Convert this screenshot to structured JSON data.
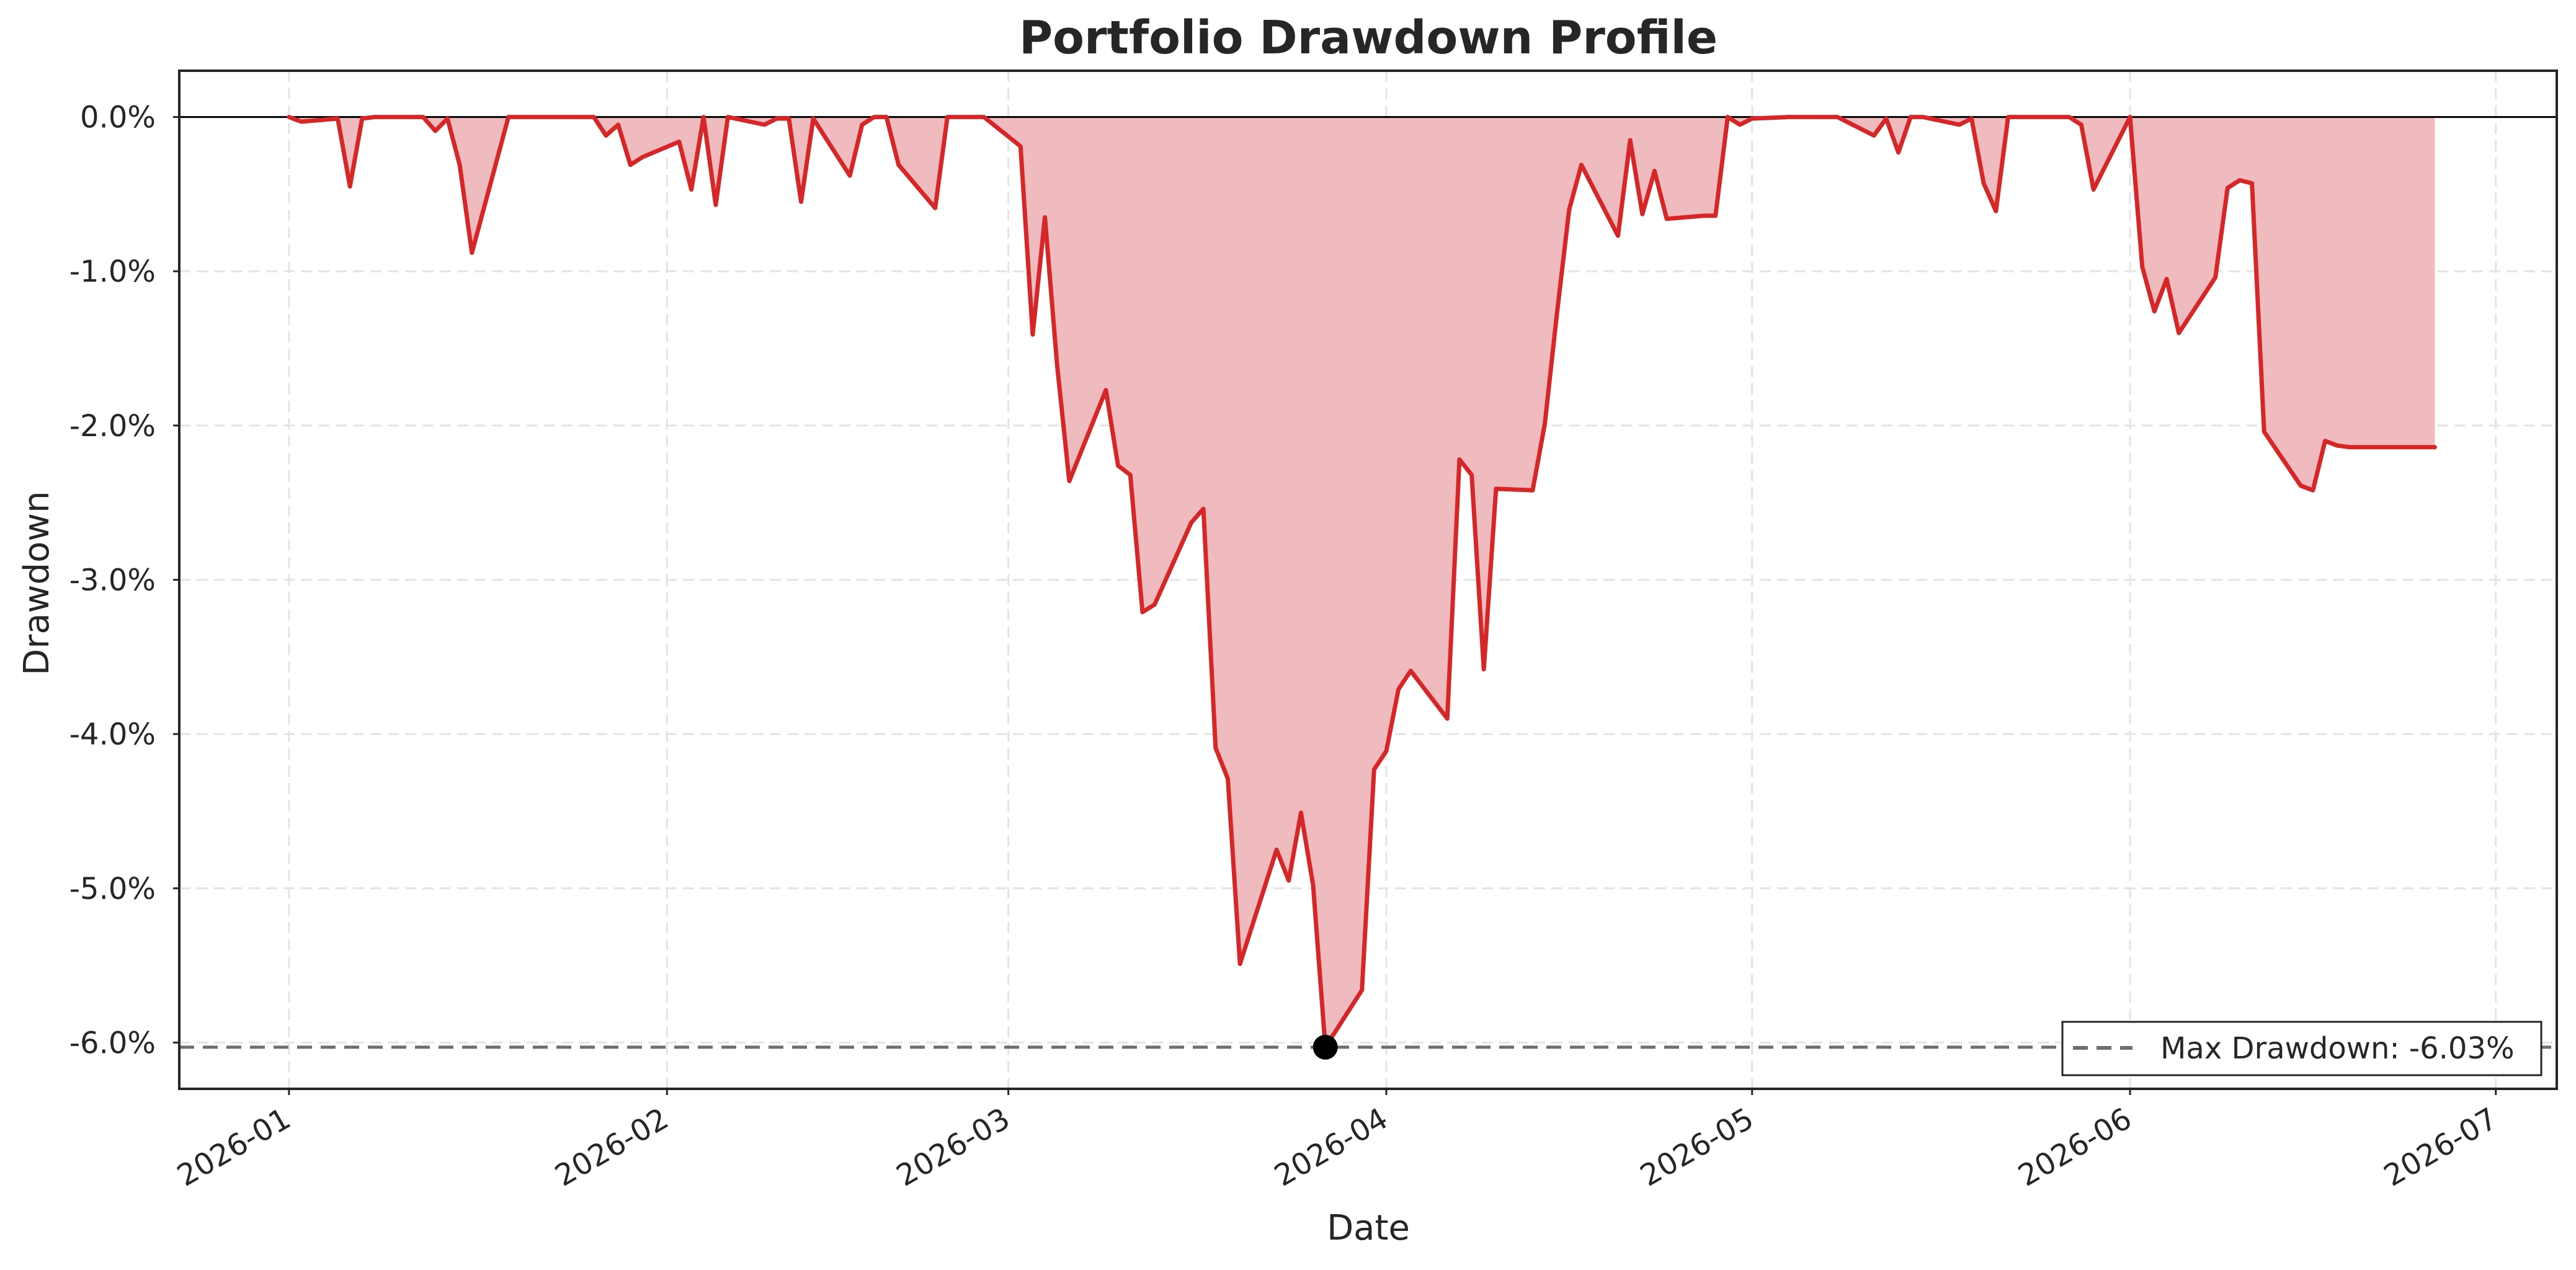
{
  "chart_data": {
    "type": "area",
    "title": "Portfolio Drawdown Profile",
    "xlabel": "Date",
    "ylabel": "Drawdown",
    "x_ticks": [
      "2026-01",
      "2026-02",
      "2026-03",
      "2026-04",
      "2026-05",
      "2026-06",
      "2026-07"
    ],
    "y_ticks": [
      "0.0%",
      "-1.0%",
      "-2.0%",
      "-3.0%",
      "-4.0%",
      "-5.0%",
      "-6.0%"
    ],
    "xlim": [
      "2025-12-23",
      "2026-07-06"
    ],
    "ylim": [
      -6.3,
      0.3
    ],
    "grid": true,
    "legend_position": "lower-right",
    "colors": {
      "line": "#d62728",
      "fill": "#f0bbbe",
      "reference": "#6e6e6e",
      "marker": "#000000",
      "zero_line": "#000000"
    },
    "series": [
      {
        "x": [
          "2026-01-01",
          "2026-01-02",
          "2026-01-05",
          "2026-01-06",
          "2026-01-07",
          "2026-01-08",
          "2026-01-09",
          "2026-01-12",
          "2026-01-13",
          "2026-01-14",
          "2026-01-15",
          "2026-01-16",
          "2026-01-19",
          "2026-01-20",
          "2026-01-21",
          "2026-01-22",
          "2026-01-23",
          "2026-01-26",
          "2026-01-27",
          "2026-01-28",
          "2026-01-29",
          "2026-01-30",
          "2026-02-02",
          "2026-02-03",
          "2026-02-04",
          "2026-02-05",
          "2026-02-06",
          "2026-02-09",
          "2026-02-10",
          "2026-02-11",
          "2026-02-12",
          "2026-02-13",
          "2026-02-16",
          "2026-02-17",
          "2026-02-18",
          "2026-02-19",
          "2026-02-20",
          "2026-02-23",
          "2026-02-24",
          "2026-02-25",
          "2026-02-26",
          "2026-02-27",
          "2026-03-02",
          "2026-03-03",
          "2026-03-04",
          "2026-03-05",
          "2026-03-06",
          "2026-03-09",
          "2026-03-10",
          "2026-03-11",
          "2026-03-12",
          "2026-03-13",
          "2026-03-16",
          "2026-03-17",
          "2026-03-18",
          "2026-03-19",
          "2026-03-20",
          "2026-03-23",
          "2026-03-24",
          "2026-03-25",
          "2026-03-26",
          "2026-03-27",
          "2026-03-30",
          "2026-03-31",
          "2026-04-01",
          "2026-04-02",
          "2026-04-03",
          "2026-04-06",
          "2026-04-07",
          "2026-04-08",
          "2026-04-09",
          "2026-04-10",
          "2026-04-13",
          "2026-04-14",
          "2026-04-15",
          "2026-04-16",
          "2026-04-17",
          "2026-04-20",
          "2026-04-21",
          "2026-04-22",
          "2026-04-23",
          "2026-04-24",
          "2026-04-27",
          "2026-04-28",
          "2026-04-29",
          "2026-04-30",
          "2026-05-01",
          "2026-05-04",
          "2026-05-05",
          "2026-05-06",
          "2026-05-07",
          "2026-05-08",
          "2026-05-11",
          "2026-05-12",
          "2026-05-13",
          "2026-05-14",
          "2026-05-15",
          "2026-05-18",
          "2026-05-19",
          "2026-05-20",
          "2026-05-21",
          "2026-05-22",
          "2026-05-25",
          "2026-05-26",
          "2026-05-27",
          "2026-05-28",
          "2026-05-29",
          "2026-06-01",
          "2026-06-02",
          "2026-06-03",
          "2026-06-04",
          "2026-06-05",
          "2026-06-08",
          "2026-06-09",
          "2026-06-10",
          "2026-06-11",
          "2026-06-12",
          "2026-06-15",
          "2026-06-16",
          "2026-06-17",
          "2026-06-18",
          "2026-06-19",
          "2026-06-22",
          "2026-06-23",
          "2026-06-24",
          "2026-06-25",
          "2026-06-26"
        ],
        "values": [
          0.0,
          -0.03,
          -0.01,
          -0.45,
          -0.01,
          0.0,
          0.0,
          0.0,
          -0.09,
          -0.01,
          -0.31,
          -0.88,
          0.0,
          0.0,
          0.0,
          0.0,
          0.0,
          0.0,
          -0.12,
          -0.05,
          -0.31,
          -0.26,
          -0.16,
          -0.47,
          0.0,
          -0.57,
          0.0,
          -0.05,
          -0.01,
          -0.01,
          -0.55,
          -0.01,
          -0.38,
          -0.05,
          0.0,
          0.0,
          -0.31,
          -0.59,
          0.0,
          0.0,
          0.0,
          0.0,
          -0.19,
          -1.41,
          -0.65,
          -1.61,
          -2.36,
          -1.77,
          -2.26,
          -2.32,
          -3.21,
          -3.16,
          -2.63,
          -2.54,
          -4.09,
          -4.29,
          -5.49,
          -4.75,
          -4.95,
          -4.51,
          -4.98,
          -6.03,
          -5.66,
          -4.23,
          -4.11,
          -3.71,
          -3.59,
          -3.9,
          -2.22,
          -2.32,
          -3.58,
          -2.41,
          -2.42,
          -1.99,
          -1.27,
          -0.6,
          -0.31,
          -0.77,
          -0.15,
          -0.63,
          -0.35,
          -0.66,
          -0.64,
          -0.64,
          0.0,
          -0.05,
          -0.01,
          0.0,
          0.0,
          0.0,
          0.0,
          0.0,
          -0.12,
          -0.01,
          -0.23,
          0.0,
          0.0,
          -0.05,
          -0.01,
          -0.43,
          -0.61,
          0.0,
          0.0,
          0.0,
          0.0,
          -0.05,
          -0.47,
          0.0,
          -0.97,
          -1.26,
          -1.05,
          -1.4,
          -1.04,
          -0.46,
          -0.41,
          -0.43,
          -2.04,
          -2.39,
          -2.42,
          -2.1,
          -2.13,
          -2.14,
          -2.14,
          -2.14,
          -2.14,
          -2.14,
          -2.14
        ]
      }
    ],
    "max_drawdown": {
      "date": "2026-03-27",
      "value": -6.03
    },
    "legend": {
      "label": "Max Drawdown: -6.03%"
    }
  }
}
